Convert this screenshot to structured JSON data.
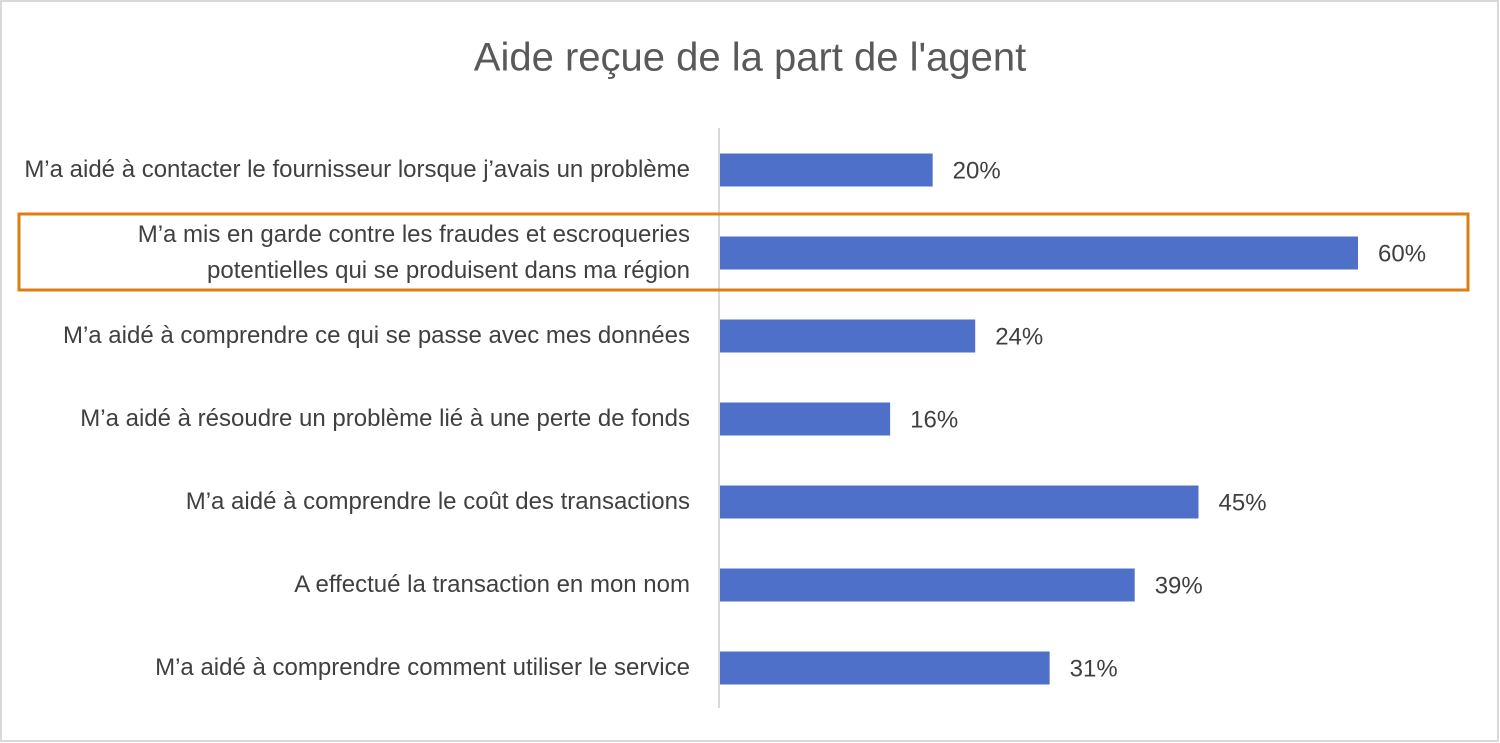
{
  "chart_data": {
    "type": "bar",
    "orientation": "horizontal",
    "title": "Aide reçue de la part de l'agent",
    "categories": [
      "M’a aidé à contacter le fournisseur lorsque j’avais un problème",
      "M’a mis en garde contre les fraudes et escroqueries potentielles qui se produisent dans ma région",
      "M’a aidé à comprendre ce qui se passe avec mes données",
      "M’a aidé à résoudre un problème lié à une perte de fonds",
      "M’a aidé à comprendre le coût des transactions",
      "A effectué la transaction en mon nom",
      "M’a aidé à comprendre comment utiliser le service"
    ],
    "values": [
      20,
      60,
      24,
      16,
      45,
      39,
      31
    ],
    "value_labels": [
      "20%",
      "60%",
      "24%",
      "16%",
      "45%",
      "39%",
      "31%"
    ],
    "color": "#4f70c9"
  }
}
